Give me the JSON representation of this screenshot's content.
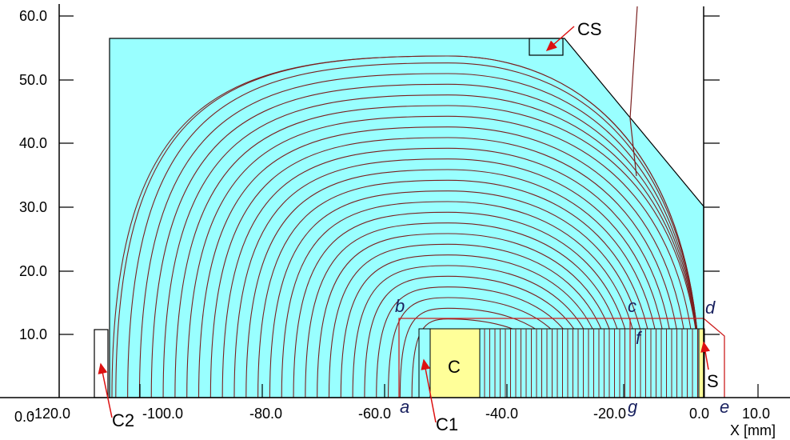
{
  "diagram": {
    "x_unit_label": "X [mm]",
    "colors": {
      "region_fill": "#99ffff",
      "coil_fill": "#ffff99",
      "field_line": "#7a1f1f",
      "red_outline": "#cc1f1f",
      "arrow": "#dd1111",
      "axis": "#000000"
    },
    "axes": {
      "x_ticks": [
        "-120.0",
        "-100.0",
        "-80.0",
        "-60.0",
        "-40.0",
        "-20.0",
        "0.0",
        "10.0"
      ],
      "y_ticks": [
        "0.0",
        "10.0",
        "20.0",
        "30.0",
        "40.0",
        "50.0",
        "60.0"
      ]
    },
    "point_labels": [
      "a",
      "b",
      "c",
      "d",
      "e",
      "f",
      "g"
    ],
    "part_labels": {
      "cs": "CS",
      "c2": "C2",
      "c1": "C1",
      "c": "C",
      "s": "S"
    }
  }
}
